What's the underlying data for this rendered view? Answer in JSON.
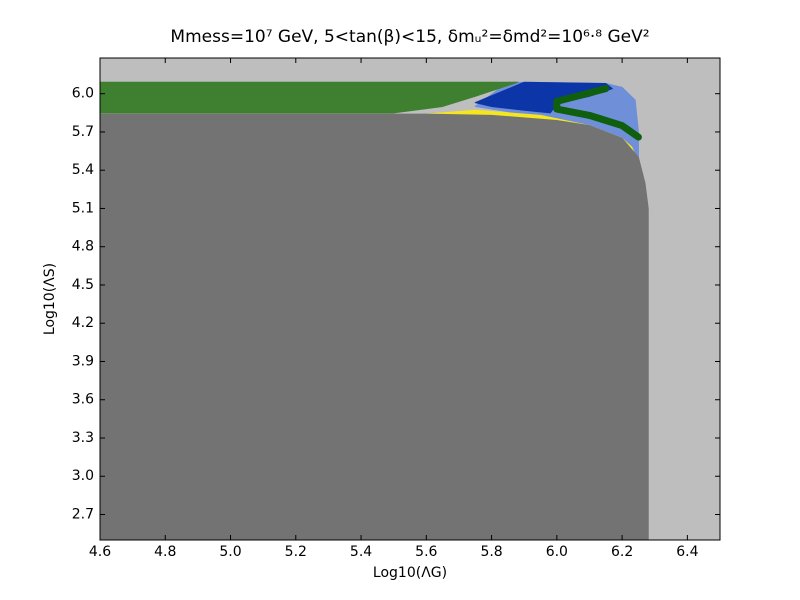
{
  "chart_data": {
    "type": "region",
    "title": "Mmess=10⁷ GeV, 5<tan(β)<15, δmᵤ²=δmd²=10⁶·⁸ GeV²",
    "x_label": "Log10(ΛG)",
    "y_label": "Log10(ΛS)",
    "xlim": [
      4.6,
      6.5
    ],
    "ylim": [
      2.5,
      6.28
    ],
    "xticks": [
      4.6,
      4.8,
      {
        "value": 5.0,
        "label": "5.0"
      },
      5.2,
      5.4,
      5.6,
      5.8,
      {
        "value": 6.0,
        "label": "6.0"
      },
      6.2,
      6.4
    ],
    "yticks": [
      2.7,
      {
        "value": 3.0,
        "label": "3.0"
      },
      3.3,
      3.6,
      3.9,
      4.2,
      4.5,
      4.8,
      5.1,
      5.4,
      5.7,
      {
        "value": 6.0,
        "label": "6.0"
      }
    ],
    "background": "#bebebe",
    "series": [
      {
        "color": "#6f8fd8",
        "kind": "polygon",
        "x": [
          5.75,
          5.85,
          6.15,
          6.2,
          6.24,
          6.25,
          6.25,
          6.2,
          6.1,
          5.95
        ],
        "values": [
          5.9,
          6.09,
          6.08,
          6.05,
          5.95,
          5.7,
          5.5,
          5.6,
          5.72,
          5.82
        ]
      },
      {
        "color": "#f5e61e",
        "kind": "polygon",
        "x": [
          5.6,
          5.75,
          5.95,
          6.1,
          6.2,
          6.23,
          6.25,
          6.24,
          6.1
        ],
        "values": [
          5.84,
          5.87,
          5.83,
          5.75,
          5.65,
          5.58,
          5.45,
          5.4,
          5.7
        ]
      },
      {
        "color": "#0c35a8",
        "kind": "polygon",
        "x": [
          5.75,
          5.9,
          6.15,
          6.17,
          6.1,
          6.0,
          5.98,
          5.9,
          5.8
        ],
        "values": [
          5.93,
          6.09,
          6.08,
          6.04,
          5.98,
          5.92,
          5.85,
          5.87,
          5.9
        ]
      },
      {
        "color": "#3f7f30",
        "kind": "polygon",
        "x": [
          4.6,
          5.88,
          5.75,
          5.65,
          5.5,
          4.6
        ],
        "values": [
          6.09,
          6.09,
          5.98,
          5.9,
          5.85,
          5.85
        ]
      },
      {
        "color": "#737373",
        "kind": "polygon",
        "x": [
          4.6,
          6.28,
          6.28,
          6.27,
          6.25,
          6.2,
          6.1,
          6.0,
          5.8,
          5.6,
          4.6
        ],
        "values": [
          2.5,
          2.5,
          5.1,
          5.3,
          5.5,
          5.65,
          5.75,
          5.79,
          5.83,
          5.84,
          5.84
        ]
      },
      {
        "color": "#0f5f0f",
        "kind": "line",
        "x": [
          6.15,
          6.0,
          6.0,
          6.1,
          6.2,
          6.25
        ],
        "values": [
          6.04,
          5.94,
          5.88,
          5.83,
          5.75,
          5.66
        ]
      }
    ]
  }
}
